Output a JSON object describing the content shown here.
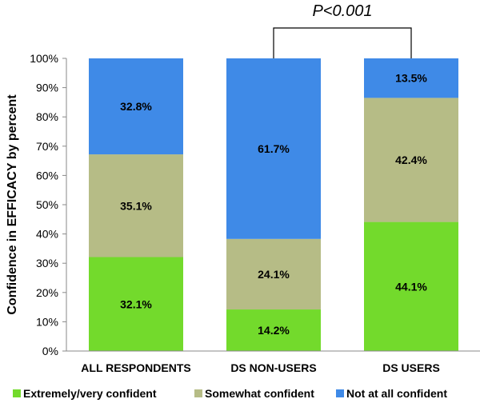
{
  "chart_data": {
    "type": "bar",
    "stacked": true,
    "categories": [
      "ALL RESPONDENTS",
      "DS NON-USERS",
      "DS USERS"
    ],
    "series": [
      {
        "name": "Extremely/very confident",
        "values": [
          32.1,
          14.2,
          44.1
        ],
        "labels": [
          "32.1%",
          "14.2%",
          "44.1%"
        ],
        "color": "#73da2c"
      },
      {
        "name": "Somewhat confident",
        "values": [
          35.1,
          24.1,
          42.4
        ],
        "labels": [
          "35.1%",
          "24.1%",
          "42.4%"
        ],
        "color": "#b6bc86"
      },
      {
        "name": "Not at all confident",
        "values": [
          32.8,
          61.7,
          13.5
        ],
        "labels": [
          "32.8%",
          "61.7%",
          "13.5%"
        ],
        "color": "#3f8ae7"
      }
    ],
    "ylabel": "Confidence in EFFICACY by percent",
    "xlabel": "",
    "ylim": [
      0,
      100
    ],
    "yticks": [
      "0%",
      "10%",
      "20%",
      "30%",
      "40%",
      "50%",
      "60%",
      "70%",
      "80%",
      "90%",
      "100%"
    ],
    "annotation": {
      "text": "P<0.001",
      "from_category": 1,
      "to_category": 2
    },
    "legend": "bottom",
    "grid": false
  }
}
